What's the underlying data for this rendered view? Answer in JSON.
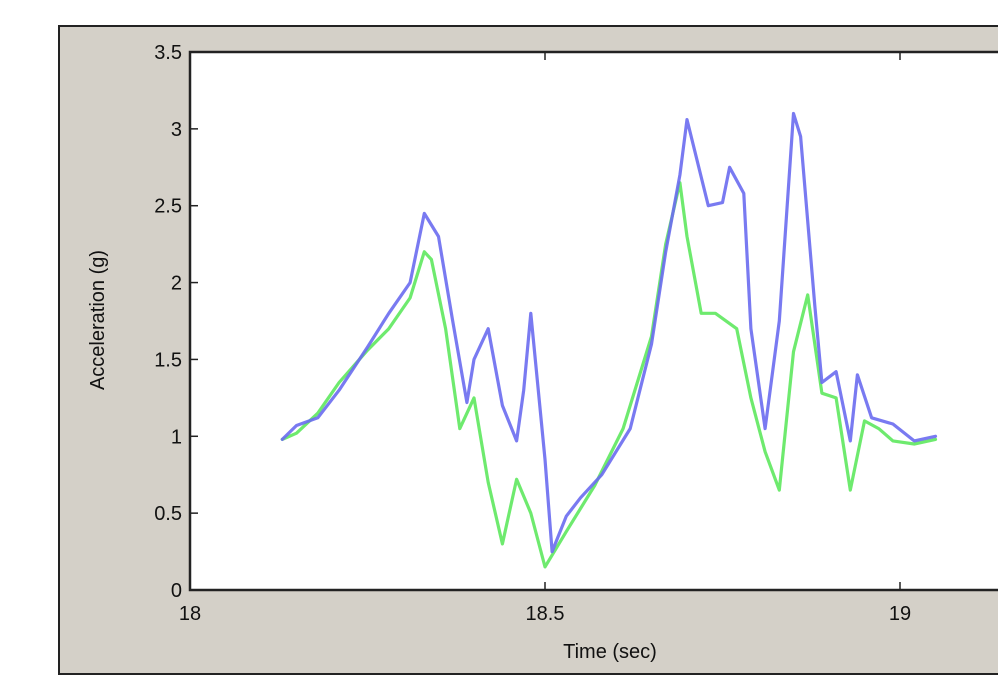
{
  "colors": {
    "figure_bg": "#d4d0c8",
    "axes_bg": "#ffffff",
    "series_blue": "#6a6cf0",
    "series_green": "#5ee85e"
  },
  "chart_data": {
    "type": "line",
    "xlabel": "Time (sec)",
    "ylabel": "Acceleration (g)",
    "xlim": [
      18,
      19.15
    ],
    "ylim": [
      0,
      3.5
    ],
    "xticks": [
      {
        "value": 18,
        "label": "18"
      },
      {
        "value": 18.5,
        "label": "18.5"
      },
      {
        "value": 19,
        "label": "19"
      }
    ],
    "yticks": [
      {
        "value": 0,
        "label": "0"
      },
      {
        "value": 0.5,
        "label": "0.5"
      },
      {
        "value": 1,
        "label": "1"
      },
      {
        "value": 1.5,
        "label": "1.5"
      },
      {
        "value": 2,
        "label": "2"
      },
      {
        "value": 2.5,
        "label": "2.5"
      },
      {
        "value": 3,
        "label": "3"
      },
      {
        "value": 3.5,
        "label": "3.5"
      }
    ],
    "grid": false,
    "legend": "none",
    "series": [
      {
        "color": "#6a6cf0",
        "x": [
          18.13,
          18.15,
          18.18,
          18.21,
          18.25,
          18.28,
          18.31,
          18.33,
          18.35,
          18.37,
          18.39,
          18.4,
          18.42,
          18.44,
          18.46,
          18.47,
          18.48,
          18.5,
          18.51,
          18.53,
          18.55,
          18.58,
          18.62,
          18.65,
          18.67,
          18.69,
          18.7,
          18.73,
          18.75,
          18.76,
          18.78,
          18.79,
          18.81,
          18.83,
          18.85,
          18.86,
          18.88,
          18.89,
          18.91,
          18.93,
          18.94,
          18.96,
          18.99,
          19.02,
          19.05
        ],
        "y": [
          0.98,
          1.07,
          1.12,
          1.3,
          1.58,
          1.8,
          2.0,
          2.45,
          2.3,
          1.75,
          1.22,
          1.5,
          1.7,
          1.2,
          0.97,
          1.3,
          1.8,
          0.85,
          0.25,
          0.48,
          0.6,
          0.75,
          1.05,
          1.6,
          2.2,
          2.7,
          3.06,
          2.5,
          2.52,
          2.75,
          2.58,
          1.7,
          1.05,
          1.75,
          3.1,
          2.95,
          1.85,
          1.35,
          1.42,
          0.97,
          1.4,
          1.12,
          1.08,
          0.97,
          1.0
        ]
      },
      {
        "color": "#5ee85e",
        "x": [
          18.13,
          18.15,
          18.18,
          18.21,
          18.25,
          18.28,
          18.31,
          18.33,
          18.34,
          18.36,
          18.38,
          18.4,
          18.42,
          18.44,
          18.46,
          18.48,
          18.5,
          18.53,
          18.57,
          18.61,
          18.65,
          18.67,
          18.69,
          18.7,
          18.72,
          18.74,
          18.77,
          18.79,
          18.81,
          18.83,
          18.85,
          18.87,
          18.89,
          18.91,
          18.93,
          18.95,
          18.97,
          18.99,
          19.02,
          19.05
        ],
        "y": [
          0.98,
          1.02,
          1.15,
          1.35,
          1.56,
          1.7,
          1.9,
          2.2,
          2.15,
          1.7,
          1.05,
          1.25,
          0.7,
          0.3,
          0.72,
          0.5,
          0.15,
          0.38,
          0.68,
          1.05,
          1.65,
          2.25,
          2.65,
          2.3,
          1.8,
          1.8,
          1.7,
          1.25,
          0.9,
          0.65,
          1.55,
          1.92,
          1.28,
          1.25,
          0.65,
          1.1,
          1.05,
          0.97,
          0.95,
          0.98
        ]
      }
    ]
  }
}
